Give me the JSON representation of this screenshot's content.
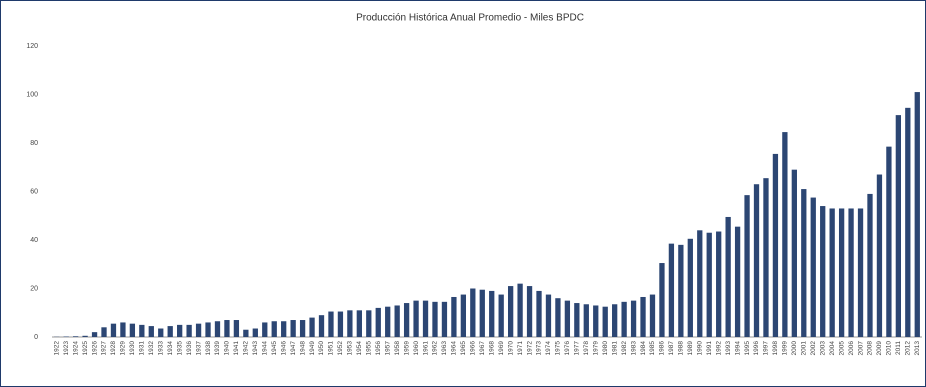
{
  "chart_data": {
    "type": "bar",
    "title": "Producción Histórica Anual Promedio - Miles BPDC",
    "categories": [
      "1922",
      "1923",
      "1924",
      "1925",
      "1926",
      "1927",
      "1928",
      "1929",
      "1930",
      "1931",
      "1932",
      "1933",
      "1934",
      "1935",
      "1936",
      "1937",
      "1938",
      "1939",
      "1940",
      "1941",
      "1942",
      "1943",
      "1944",
      "1945",
      "1946",
      "1947",
      "1948",
      "1949",
      "1950",
      "1951",
      "1952",
      "1953",
      "1954",
      "1955",
      "1956",
      "1957",
      "1958",
      "1959",
      "1960",
      "1961",
      "1962",
      "1963",
      "1964",
      "1965",
      "1966",
      "1967",
      "1968",
      "1969",
      "1970",
      "1971",
      "1972",
      "1973",
      "1974",
      "1975",
      "1976",
      "1977",
      "1978",
      "1979",
      "1980",
      "1981",
      "1982",
      "1983",
      "1984",
      "1985",
      "1986",
      "1987",
      "1988",
      "1989",
      "1990",
      "1991",
      "1992",
      "1993",
      "1994",
      "1995",
      "1996",
      "1997",
      "1998",
      "1999",
      "2000",
      "2001",
      "2002",
      "2003",
      "2004",
      "2005",
      "2006",
      "2007",
      "2008",
      "2009",
      "2010",
      "2011",
      "2012",
      "2013"
    ],
    "values": [
      0.1,
      0.2,
      0.3,
      0.5,
      2,
      4,
      5.5,
      6,
      5.5,
      5,
      4.5,
      3.5,
      4.5,
      5,
      5,
      5.5,
      6,
      6.5,
      7,
      7,
      3,
      3.5,
      6,
      6.5,
      6.5,
      7,
      7,
      8,
      9,
      10.5,
      10.5,
      11,
      11,
      11,
      12,
      12.5,
      13,
      14,
      15,
      15,
      14.5,
      14.5,
      16.5,
      17.5,
      20,
      19.5,
      19,
      17.5,
      21,
      22,
      21,
      19,
      17.5,
      16,
      15,
      14,
      13.5,
      13,
      12.5,
      13.5,
      14.5,
      15,
      16.5,
      17.5,
      30.5,
      38.5,
      38,
      40.5,
      44,
      43,
      43.5,
      49.5,
      45.5,
      58.5,
      63,
      65.5,
      75.5,
      84.5,
      69,
      61,
      57.5,
      54,
      53,
      53,
      53,
      53,
      59,
      67,
      78.5,
      91.5,
      94.5,
      101
    ],
    "color": "#2c4673",
    "ylim": [
      0,
      120
    ],
    "yticks": [
      0,
      20,
      40,
      60,
      80,
      100,
      120
    ],
    "grid": false
  }
}
